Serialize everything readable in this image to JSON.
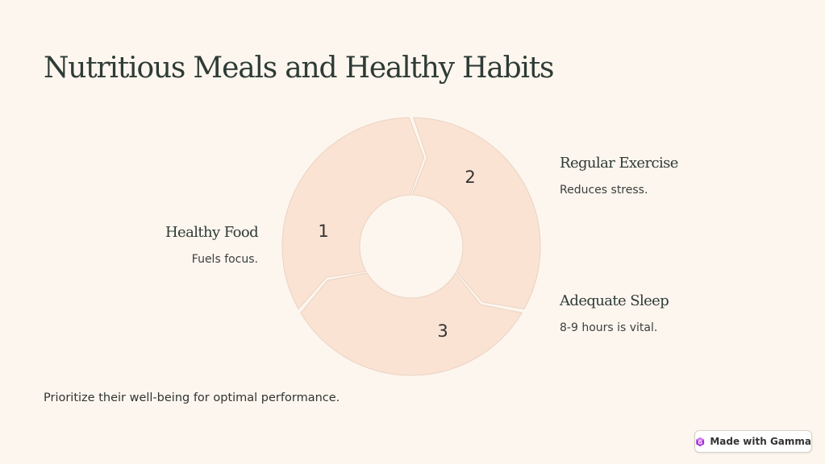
{
  "title": "Nutritious Meals and Healthy Habits",
  "colors": {
    "background": "#fdf6ee",
    "segment_fill": "#fbe3d3",
    "segment_stroke": "#ead3c3",
    "badge_logo": "#a235d8"
  },
  "cycle": {
    "items": [
      {
        "number": "1",
        "title": "Healthy Food",
        "description": "Fuels focus."
      },
      {
        "number": "2",
        "title": "Regular Exercise",
        "description": "Reduces stress."
      },
      {
        "number": "3",
        "title": "Adequate Sleep",
        "description": "8-9 hours is vital."
      }
    ]
  },
  "footer": {
    "text": "Prioritize their well-being for optimal performance."
  },
  "badge": {
    "label": "Made with Gamma",
    "icon": "gamma-logo-icon"
  }
}
